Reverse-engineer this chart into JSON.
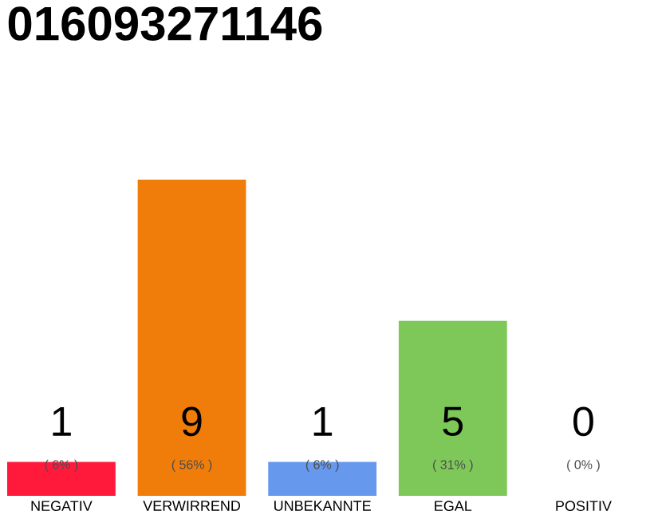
{
  "chart_data": {
    "type": "bar",
    "title": "016093271146",
    "categories": [
      "NEGATIV",
      "VERWIRREND",
      "UNBEKANNTE",
      "EGAL",
      "POSITIV"
    ],
    "annotations": [
      "1",
      "9",
      "1",
      "5",
      "0"
    ],
    "series": [
      {
        "colors": [
          "#ff1a3c",
          "#f07d0a",
          "#6699ee",
          "#7ec85a",
          "#cccccc"
        ],
        "values": [
          6,
          56,
          6,
          31,
          0
        ],
        "value_labels": [
          "( 6% )",
          "( 56% )",
          "( 6% )",
          "( 31% )",
          "( 0% )"
        ]
      }
    ]
  }
}
